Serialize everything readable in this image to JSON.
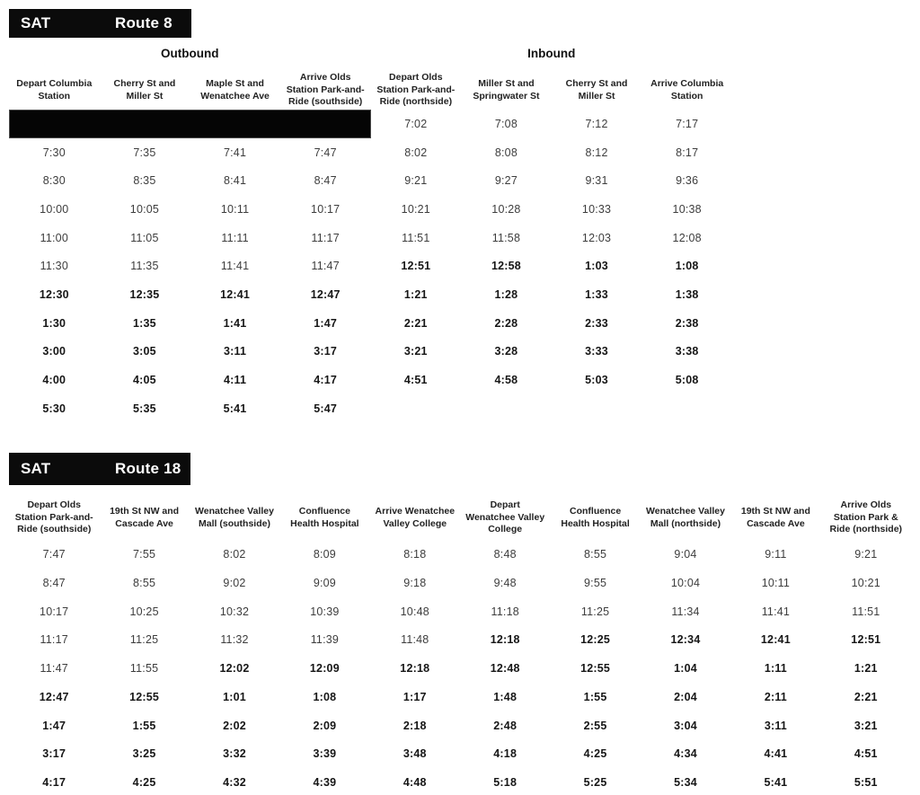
{
  "route8": {
    "day": "SAT",
    "route": "Route 8",
    "directions": [
      {
        "label": "Outbound",
        "span": 4
      },
      {
        "label": "Inbound",
        "span": 4
      }
    ],
    "columns": [
      [
        "Depart Columbia",
        "Station"
      ],
      [
        "Cherry St and",
        "Miller St"
      ],
      [
        "Maple St and",
        "Wenatchee Ave"
      ],
      [
        "Arrive Olds",
        "Station Park-and-",
        "Ride (southside)"
      ],
      [
        "Depart Olds",
        "Station Park-and-",
        "Ride (northside)"
      ],
      [
        "Miller St and",
        "Springwater St"
      ],
      [
        "Cherry St and",
        "Miller St"
      ],
      [
        "Arrive Columbia",
        "Station"
      ]
    ],
    "rows": [
      [
        {
          "bar": 4
        },
        "7:02",
        "7:08",
        "7:12",
        "7:17"
      ],
      [
        "7:30",
        "7:35",
        "7:41",
        "7:47",
        "8:02",
        "8:08",
        "8:12",
        "8:17"
      ],
      [
        "8:30",
        "8:35",
        "8:41",
        "8:47",
        "9:21",
        "9:27",
        "9:31",
        "9:36"
      ],
      [
        "10:00",
        "10:05",
        "10:11",
        "10:17",
        "10:21",
        "10:28",
        "10:33",
        "10:38"
      ],
      [
        "11:00",
        "11:05",
        "11:11",
        "11:17",
        "11:51",
        "11:58",
        "12:03",
        "12:08"
      ],
      [
        "11:30",
        "11:35",
        "11:41",
        "11:47",
        {
          "t": "12:51",
          "b": 1
        },
        {
          "t": "12:58",
          "b": 1
        },
        {
          "t": "1:03",
          "b": 1
        },
        {
          "t": "1:08",
          "b": 1
        }
      ],
      [
        {
          "t": "12:30",
          "b": 1
        },
        {
          "t": "12:35",
          "b": 1
        },
        {
          "t": "12:41",
          "b": 1
        },
        {
          "t": "12:47",
          "b": 1
        },
        {
          "t": "1:21",
          "b": 1
        },
        {
          "t": "1:28",
          "b": 1
        },
        {
          "t": "1:33",
          "b": 1
        },
        {
          "t": "1:38",
          "b": 1
        }
      ],
      [
        {
          "t": "1:30",
          "b": 1
        },
        {
          "t": "1:35",
          "b": 1
        },
        {
          "t": "1:41",
          "b": 1
        },
        {
          "t": "1:47",
          "b": 1
        },
        {
          "t": "2:21",
          "b": 1
        },
        {
          "t": "2:28",
          "b": 1
        },
        {
          "t": "2:33",
          "b": 1
        },
        {
          "t": "2:38",
          "b": 1
        }
      ],
      [
        {
          "t": "3:00",
          "b": 1
        },
        {
          "t": "3:05",
          "b": 1
        },
        {
          "t": "3:11",
          "b": 1
        },
        {
          "t": "3:17",
          "b": 1
        },
        {
          "t": "3:21",
          "b": 1
        },
        {
          "t": "3:28",
          "b": 1
        },
        {
          "t": "3:33",
          "b": 1
        },
        {
          "t": "3:38",
          "b": 1
        }
      ],
      [
        {
          "t": "4:00",
          "b": 1
        },
        {
          "t": "4:05",
          "b": 1
        },
        {
          "t": "4:11",
          "b": 1
        },
        {
          "t": "4:17",
          "b": 1
        },
        {
          "t": "4:51",
          "b": 1
        },
        {
          "t": "4:58",
          "b": 1
        },
        {
          "t": "5:03",
          "b": 1
        },
        {
          "t": "5:08",
          "b": 1
        }
      ],
      [
        {
          "t": "5:30",
          "b": 1
        },
        {
          "t": "5:35",
          "b": 1
        },
        {
          "t": "5:41",
          "b": 1
        },
        {
          "t": "5:47",
          "b": 1
        },
        "",
        "",
        "",
        ""
      ]
    ]
  },
  "route18": {
    "day": "SAT",
    "route": "Route 18",
    "columns": [
      [
        "Depart Olds",
        "Station Park-and-",
        "Ride (southside)"
      ],
      [
        "19th St NW and",
        "Cascade Ave"
      ],
      [
        "Wenatchee Valley",
        "Mall (southside)"
      ],
      [
        "Confluence",
        "Health Hospital"
      ],
      [
        "Arrive Wenatchee",
        "Valley College"
      ],
      [
        "Depart",
        "Wenatchee Valley",
        "College"
      ],
      [
        "Confluence",
        "Health Hospital"
      ],
      [
        "Wenatchee Valley",
        "Mall (northside)"
      ],
      [
        "19th St NW and",
        "Cascade Ave"
      ],
      [
        "Arrive Olds",
        "Station Park &",
        "Ride (northside)"
      ]
    ],
    "rows": [
      [
        "7:47",
        "7:55",
        "8:02",
        "8:09",
        "8:18",
        "8:48",
        "8:55",
        "9:04",
        "9:11",
        "9:21"
      ],
      [
        "8:47",
        "8:55",
        "9:02",
        "9:09",
        "9:18",
        "9:48",
        "9:55",
        "10:04",
        "10:11",
        "10:21"
      ],
      [
        "10:17",
        "10:25",
        "10:32",
        "10:39",
        "10:48",
        "11:18",
        "11:25",
        "11:34",
        "11:41",
        "11:51"
      ],
      [
        "11:17",
        "11:25",
        "11:32",
        "11:39",
        "11:48",
        {
          "t": "12:18",
          "b": 1
        },
        {
          "t": "12:25",
          "b": 1
        },
        {
          "t": "12:34",
          "b": 1
        },
        {
          "t": "12:41",
          "b": 1
        },
        {
          "t": "12:51",
          "b": 1
        }
      ],
      [
        "11:47",
        "11:55",
        {
          "t": "12:02",
          "b": 1
        },
        {
          "t": "12:09",
          "b": 1
        },
        {
          "t": "12:18",
          "b": 1
        },
        {
          "t": "12:48",
          "b": 1
        },
        {
          "t": "12:55",
          "b": 1
        },
        {
          "t": "1:04",
          "b": 1
        },
        {
          "t": "1:11",
          "b": 1
        },
        {
          "t": "1:21",
          "b": 1
        }
      ],
      [
        {
          "t": "12:47",
          "b": 1
        },
        {
          "t": "12:55",
          "b": 1
        },
        {
          "t": "1:01",
          "b": 1
        },
        {
          "t": "1:08",
          "b": 1
        },
        {
          "t": "1:17",
          "b": 1
        },
        {
          "t": "1:48",
          "b": 1
        },
        {
          "t": "1:55",
          "b": 1
        },
        {
          "t": "2:04",
          "b": 1
        },
        {
          "t": "2:11",
          "b": 1
        },
        {
          "t": "2:21",
          "b": 1
        }
      ],
      [
        {
          "t": "1:47",
          "b": 1
        },
        {
          "t": "1:55",
          "b": 1
        },
        {
          "t": "2:02",
          "b": 1
        },
        {
          "t": "2:09",
          "b": 1
        },
        {
          "t": "2:18",
          "b": 1
        },
        {
          "t": "2:48",
          "b": 1
        },
        {
          "t": "2:55",
          "b": 1
        },
        {
          "t": "3:04",
          "b": 1
        },
        {
          "t": "3:11",
          "b": 1
        },
        {
          "t": "3:21",
          "b": 1
        }
      ],
      [
        {
          "t": "3:17",
          "b": 1
        },
        {
          "t": "3:25",
          "b": 1
        },
        {
          "t": "3:32",
          "b": 1
        },
        {
          "t": "3:39",
          "b": 1
        },
        {
          "t": "3:48",
          "b": 1
        },
        {
          "t": "4:18",
          "b": 1
        },
        {
          "t": "4:25",
          "b": 1
        },
        {
          "t": "4:34",
          "b": 1
        },
        {
          "t": "4:41",
          "b": 1
        },
        {
          "t": "4:51",
          "b": 1
        }
      ],
      [
        {
          "t": "4:17",
          "b": 1
        },
        {
          "t": "4:25",
          "b": 1
        },
        {
          "t": "4:32",
          "b": 1
        },
        {
          "t": "4:39",
          "b": 1
        },
        {
          "t": "4:48",
          "b": 1
        },
        {
          "t": "5:18",
          "b": 1
        },
        {
          "t": "5:25",
          "b": 1
        },
        {
          "t": "5:34",
          "b": 1
        },
        {
          "t": "5:41",
          "b": 1
        },
        {
          "t": "5:51",
          "b": 1
        }
      ]
    ]
  }
}
